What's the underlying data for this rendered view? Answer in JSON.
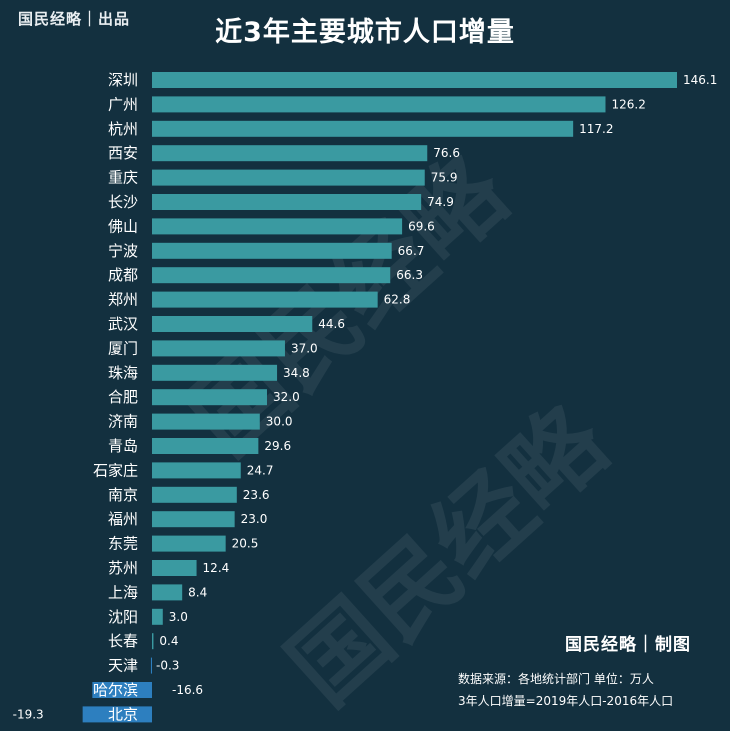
{
  "header": {
    "brand": "国民经略｜出品",
    "title": "近3年主要城市人口增量"
  },
  "footer": {
    "credit": "国民经略｜制图",
    "source_note": "数据来源：各地统计部门 单位：万人",
    "formula_note": "3年人口增量=2019年人口-2016年人口"
  },
  "watermark": "国民经略",
  "colors": {
    "background": "#13303f",
    "positive_bar": "#3a9aa1",
    "negative_bar": "#2d7fbf",
    "text": "#ffffff"
  },
  "chart_data": {
    "type": "bar",
    "orientation": "horizontal",
    "title": "近3年主要城市人口增量",
    "unit": "万人",
    "categories": [
      "深圳",
      "广州",
      "杭州",
      "西安",
      "重庆",
      "长沙",
      "佛山",
      "宁波",
      "成都",
      "郑州",
      "武汉",
      "厦门",
      "珠海",
      "合肥",
      "济南",
      "青岛",
      "石家庄",
      "南京",
      "福州",
      "东莞",
      "苏州",
      "上海",
      "沈阳",
      "长春",
      "天津",
      "哈尔滨",
      "北京"
    ],
    "values": [
      146.1,
      126.2,
      117.2,
      76.6,
      75.9,
      74.9,
      69.6,
      66.7,
      66.3,
      62.8,
      44.6,
      37.0,
      34.8,
      32.0,
      30.0,
      29.6,
      24.7,
      23.6,
      23.0,
      20.5,
      12.4,
      8.4,
      3.0,
      0.4,
      -0.3,
      -16.6,
      -19.3
    ],
    "value_labels": [
      "146.1",
      "126.2",
      "117.2",
      "76.6",
      "75.9",
      "74.9",
      "69.6",
      "66.7",
      "66.3",
      "62.8",
      "44.6",
      "37.0",
      "34.8",
      "32.0",
      "30.0",
      "29.6",
      "24.7",
      "23.6",
      "23.0",
      "20.5",
      "12.4",
      "8.4",
      "3.0",
      "0.4",
      "-0.3",
      "-16.6",
      "-19.3"
    ],
    "grid": false,
    "legend": "none"
  }
}
